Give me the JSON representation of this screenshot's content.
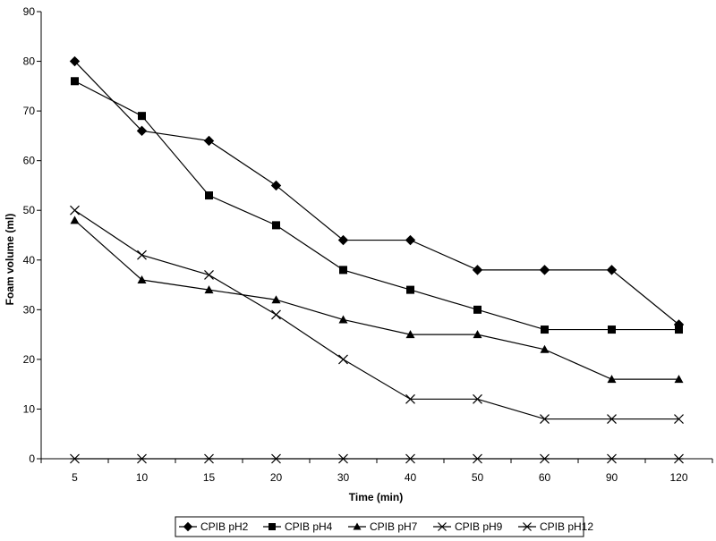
{
  "chart_data": {
    "type": "line",
    "title": "",
    "xlabel": "Time (min)",
    "ylabel": "Foam volume (ml)",
    "categories": [
      "5",
      "10",
      "15",
      "20",
      "30",
      "40",
      "50",
      "60",
      "90",
      "120"
    ],
    "ylim": [
      0,
      90
    ],
    "yticks": [
      0,
      10,
      20,
      30,
      40,
      50,
      60,
      70,
      80,
      90
    ],
    "grid": false,
    "legend_position": "bottom",
    "series": [
      {
        "name": "CPIB pH2",
        "marker": "diamond",
        "values": [
          80,
          66,
          64,
          55,
          44,
          44,
          38,
          38,
          38,
          27
        ]
      },
      {
        "name": "CPIB pH4",
        "marker": "square",
        "values": [
          76,
          69,
          53,
          47,
          38,
          34,
          30,
          26,
          26,
          26
        ]
      },
      {
        "name": "CPIB pH7",
        "marker": "triangle",
        "values": [
          48,
          36,
          34,
          32,
          28,
          25,
          25,
          22,
          16,
          16
        ]
      },
      {
        "name": "CPIB pH9",
        "marker": "x",
        "values": [
          50,
          41,
          37,
          29,
          20,
          12,
          12,
          8,
          8,
          8
        ]
      },
      {
        "name": "CPIB pH12",
        "marker": "star",
        "values": [
          0,
          0,
          0,
          0,
          0,
          0,
          0,
          0,
          0,
          0
        ]
      }
    ],
    "colors": {
      "line": "#000000",
      "axis": "#000000",
      "legend_border": "#000000"
    }
  }
}
